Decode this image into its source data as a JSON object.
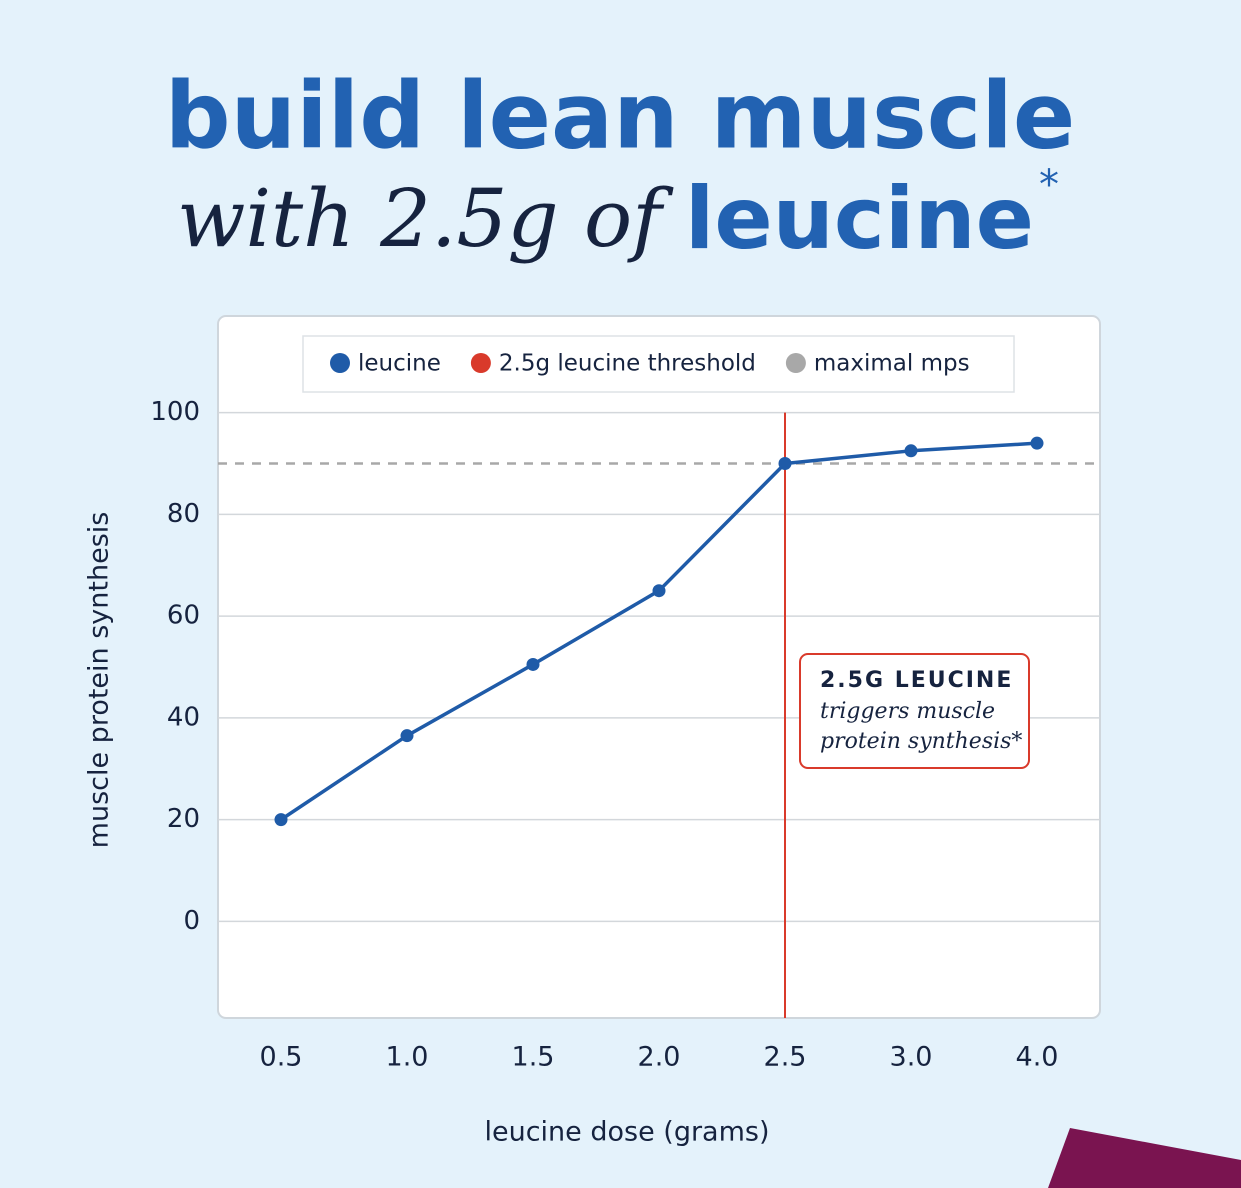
{
  "chart_data": {
    "type": "line",
    "title": "build lean muscle",
    "subtitle": "with 2.5g of",
    "subtitle_emphasis": "leucine",
    "subtitle_mark": "*",
    "x_label": "leucine dose (grams)",
    "y_label": "muscle protein synthesis",
    "categories": [
      "0.5",
      "1.0",
      "1.5",
      "2.0",
      "2.5",
      "3.0",
      "4.0"
    ],
    "series": [
      {
        "name": "leucine",
        "color": "#1f5ba8",
        "values": [
          20,
          36.5,
          50.5,
          65,
          90,
          92.5,
          94
        ]
      }
    ],
    "reference_lines": [
      {
        "name": "2.5g leucine threshold",
        "color": "#d93a2b",
        "x": "2.5"
      },
      {
        "name": "maximal mps",
        "color": "#a8a8a8",
        "y": 90
      }
    ],
    "annotation": {
      "heading": "2.5G LEUCINE",
      "lines": [
        "triggers muscle",
        "protein synthesis*"
      ]
    },
    "ylim": [
      -19,
      119
    ],
    "yticks": [
      0,
      20,
      40,
      60,
      80,
      100
    ],
    "grid": true
  }
}
